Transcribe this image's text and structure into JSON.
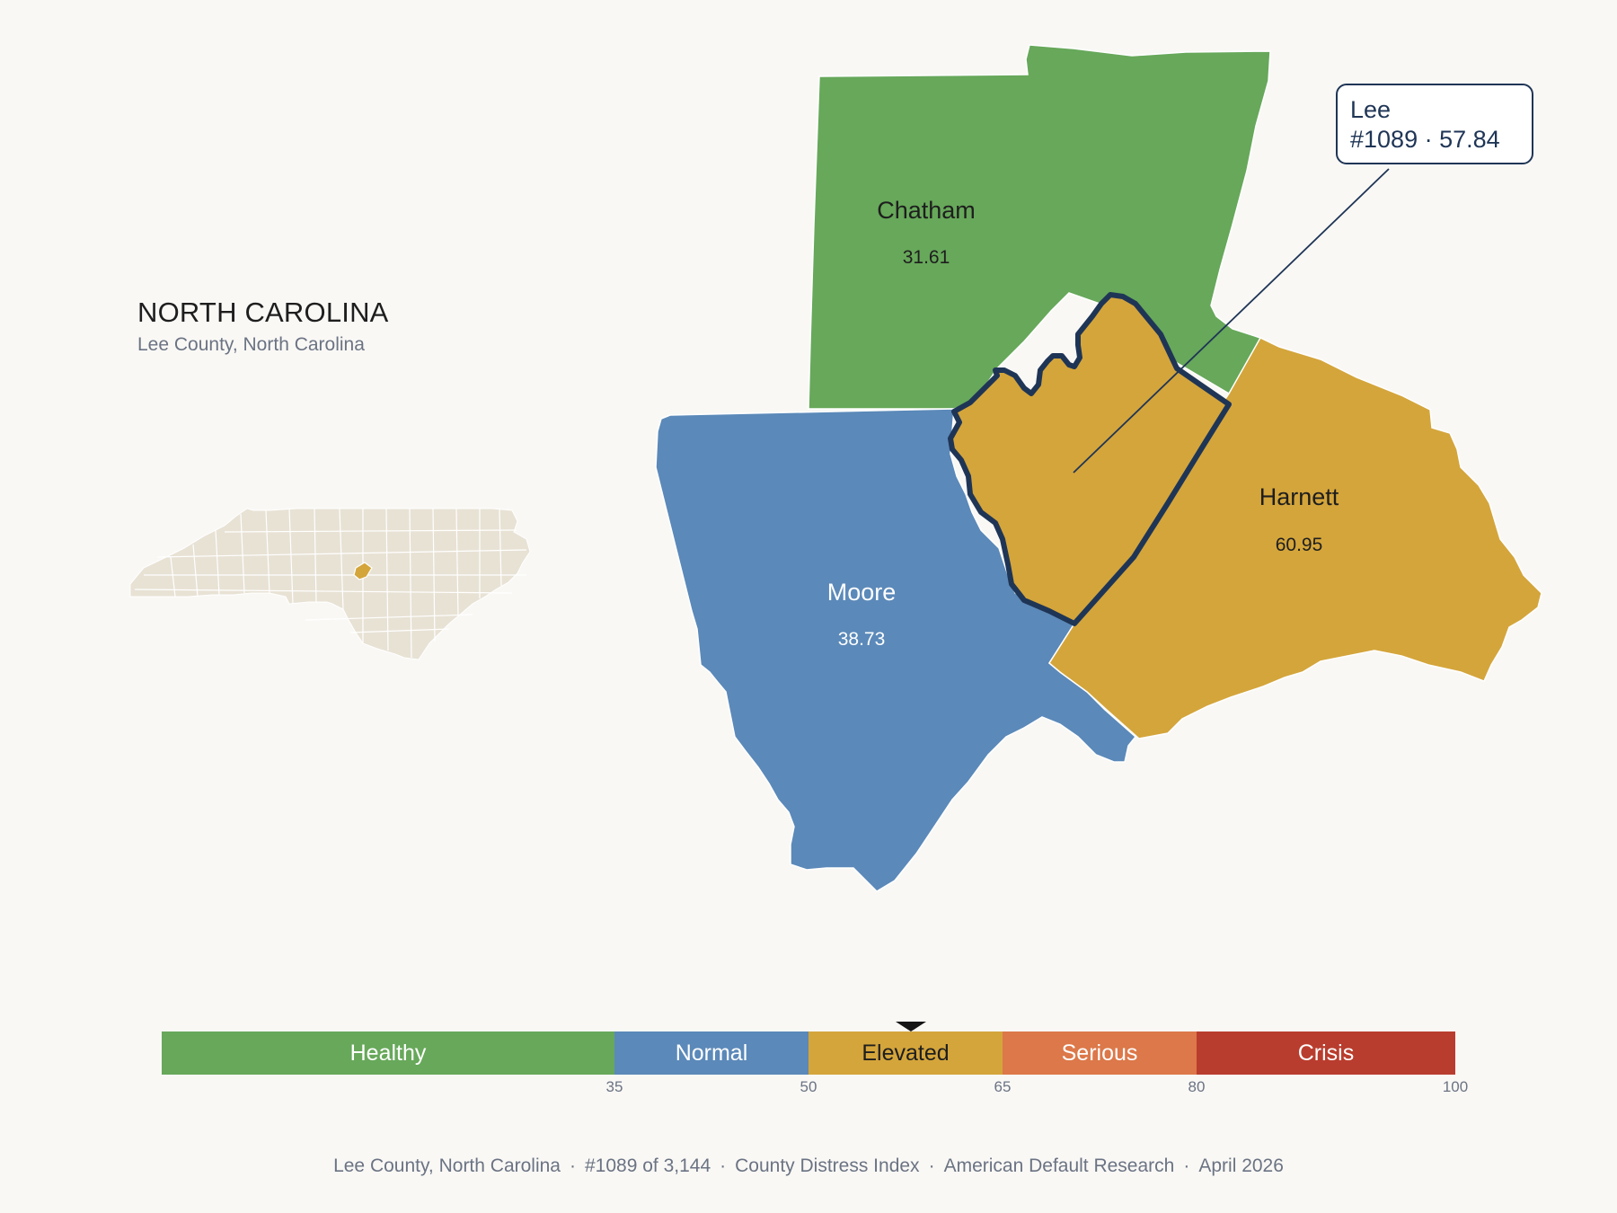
{
  "header": {
    "state_name": "NORTH CAROLINA",
    "subtitle": "Lee County, North Carolina"
  },
  "counties": [
    {
      "name": "Chatham",
      "score": "31.61",
      "category": "Healthy"
    },
    {
      "name": "Moore",
      "score": "38.73",
      "category": "Normal"
    },
    {
      "name": "Harnett",
      "score": "60.95",
      "category": "Elevated"
    },
    {
      "name": "Lee",
      "score": "57.84",
      "category": "Elevated",
      "selected": true
    }
  ],
  "callout": {
    "line1": "Lee",
    "line2": "#1089 · 57.84"
  },
  "colors": {
    "healthy": "#67a85a",
    "normal": "#5b89b9",
    "elevated": "#d4a53b",
    "serious": "#dc7849",
    "crisis": "#b93d2e",
    "selected_outline": "#1f3556",
    "inset_fill": "#e8e2d5",
    "background": "#f9f8f5"
  },
  "legend": {
    "segments": [
      {
        "label": "Healthy",
        "from": 0,
        "to": 35
      },
      {
        "label": "Normal",
        "from": 35,
        "to": 50
      },
      {
        "label": "Elevated",
        "from": 50,
        "to": 65
      },
      {
        "label": "Serious",
        "from": 65,
        "to": 80
      },
      {
        "label": "Crisis",
        "from": 80,
        "to": 100
      }
    ],
    "ticks": [
      "35",
      "50",
      "65",
      "80",
      "100"
    ],
    "marker_value": 57.84
  },
  "footer": {
    "location": "Lee County, North Carolina",
    "rank": "#1089 of 3,144",
    "index_name": "County Distress Index",
    "source": "American Default Research",
    "date": "April 2026"
  }
}
